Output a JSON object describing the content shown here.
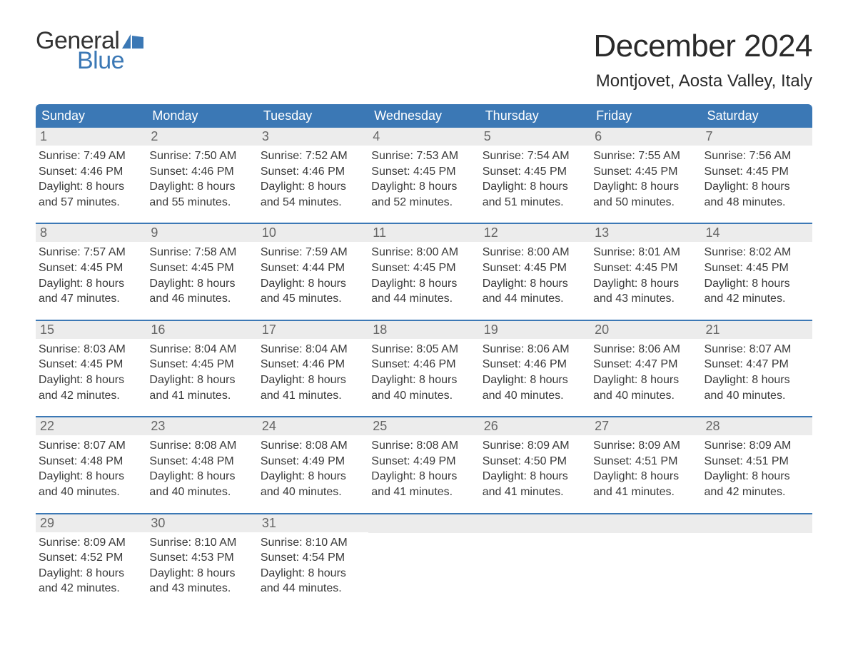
{
  "logo": {
    "text_general": "General",
    "text_blue": "Blue",
    "flag_color": "#3b78b5",
    "text_dark": "#333333"
  },
  "header": {
    "month_title": "December 2024",
    "location": "Montjovet, Aosta Valley, Italy"
  },
  "colors": {
    "header_bg": "#3b78b5",
    "header_text": "#ffffff",
    "daynum_bg": "#ececec",
    "daynum_text": "#666666",
    "body_text": "#3a3a3a",
    "row_border": "#3b78b5",
    "page_bg": "#ffffff"
  },
  "weekdays": [
    "Sunday",
    "Monday",
    "Tuesday",
    "Wednesday",
    "Thursday",
    "Friday",
    "Saturday"
  ],
  "weeks": [
    [
      {
        "day": "1",
        "sunrise": "Sunrise: 7:49 AM",
        "sunset": "Sunset: 4:46 PM",
        "d1": "Daylight: 8 hours",
        "d2": "and 57 minutes."
      },
      {
        "day": "2",
        "sunrise": "Sunrise: 7:50 AM",
        "sunset": "Sunset: 4:46 PM",
        "d1": "Daylight: 8 hours",
        "d2": "and 55 minutes."
      },
      {
        "day": "3",
        "sunrise": "Sunrise: 7:52 AM",
        "sunset": "Sunset: 4:46 PM",
        "d1": "Daylight: 8 hours",
        "d2": "and 54 minutes."
      },
      {
        "day": "4",
        "sunrise": "Sunrise: 7:53 AM",
        "sunset": "Sunset: 4:45 PM",
        "d1": "Daylight: 8 hours",
        "d2": "and 52 minutes."
      },
      {
        "day": "5",
        "sunrise": "Sunrise: 7:54 AM",
        "sunset": "Sunset: 4:45 PM",
        "d1": "Daylight: 8 hours",
        "d2": "and 51 minutes."
      },
      {
        "day": "6",
        "sunrise": "Sunrise: 7:55 AM",
        "sunset": "Sunset: 4:45 PM",
        "d1": "Daylight: 8 hours",
        "d2": "and 50 minutes."
      },
      {
        "day": "7",
        "sunrise": "Sunrise: 7:56 AM",
        "sunset": "Sunset: 4:45 PM",
        "d1": "Daylight: 8 hours",
        "d2": "and 48 minutes."
      }
    ],
    [
      {
        "day": "8",
        "sunrise": "Sunrise: 7:57 AM",
        "sunset": "Sunset: 4:45 PM",
        "d1": "Daylight: 8 hours",
        "d2": "and 47 minutes."
      },
      {
        "day": "9",
        "sunrise": "Sunrise: 7:58 AM",
        "sunset": "Sunset: 4:45 PM",
        "d1": "Daylight: 8 hours",
        "d2": "and 46 minutes."
      },
      {
        "day": "10",
        "sunrise": "Sunrise: 7:59 AM",
        "sunset": "Sunset: 4:44 PM",
        "d1": "Daylight: 8 hours",
        "d2": "and 45 minutes."
      },
      {
        "day": "11",
        "sunrise": "Sunrise: 8:00 AM",
        "sunset": "Sunset: 4:45 PM",
        "d1": "Daylight: 8 hours",
        "d2": "and 44 minutes."
      },
      {
        "day": "12",
        "sunrise": "Sunrise: 8:00 AM",
        "sunset": "Sunset: 4:45 PM",
        "d1": "Daylight: 8 hours",
        "d2": "and 44 minutes."
      },
      {
        "day": "13",
        "sunrise": "Sunrise: 8:01 AM",
        "sunset": "Sunset: 4:45 PM",
        "d1": "Daylight: 8 hours",
        "d2": "and 43 minutes."
      },
      {
        "day": "14",
        "sunrise": "Sunrise: 8:02 AM",
        "sunset": "Sunset: 4:45 PM",
        "d1": "Daylight: 8 hours",
        "d2": "and 42 minutes."
      }
    ],
    [
      {
        "day": "15",
        "sunrise": "Sunrise: 8:03 AM",
        "sunset": "Sunset: 4:45 PM",
        "d1": "Daylight: 8 hours",
        "d2": "and 42 minutes."
      },
      {
        "day": "16",
        "sunrise": "Sunrise: 8:04 AM",
        "sunset": "Sunset: 4:45 PM",
        "d1": "Daylight: 8 hours",
        "d2": "and 41 minutes."
      },
      {
        "day": "17",
        "sunrise": "Sunrise: 8:04 AM",
        "sunset": "Sunset: 4:46 PM",
        "d1": "Daylight: 8 hours",
        "d2": "and 41 minutes."
      },
      {
        "day": "18",
        "sunrise": "Sunrise: 8:05 AM",
        "sunset": "Sunset: 4:46 PM",
        "d1": "Daylight: 8 hours",
        "d2": "and 40 minutes."
      },
      {
        "day": "19",
        "sunrise": "Sunrise: 8:06 AM",
        "sunset": "Sunset: 4:46 PM",
        "d1": "Daylight: 8 hours",
        "d2": "and 40 minutes."
      },
      {
        "day": "20",
        "sunrise": "Sunrise: 8:06 AM",
        "sunset": "Sunset: 4:47 PM",
        "d1": "Daylight: 8 hours",
        "d2": "and 40 minutes."
      },
      {
        "day": "21",
        "sunrise": "Sunrise: 8:07 AM",
        "sunset": "Sunset: 4:47 PM",
        "d1": "Daylight: 8 hours",
        "d2": "and 40 minutes."
      }
    ],
    [
      {
        "day": "22",
        "sunrise": "Sunrise: 8:07 AM",
        "sunset": "Sunset: 4:48 PM",
        "d1": "Daylight: 8 hours",
        "d2": "and 40 minutes."
      },
      {
        "day": "23",
        "sunrise": "Sunrise: 8:08 AM",
        "sunset": "Sunset: 4:48 PM",
        "d1": "Daylight: 8 hours",
        "d2": "and 40 minutes."
      },
      {
        "day": "24",
        "sunrise": "Sunrise: 8:08 AM",
        "sunset": "Sunset: 4:49 PM",
        "d1": "Daylight: 8 hours",
        "d2": "and 40 minutes."
      },
      {
        "day": "25",
        "sunrise": "Sunrise: 8:08 AM",
        "sunset": "Sunset: 4:49 PM",
        "d1": "Daylight: 8 hours",
        "d2": "and 41 minutes."
      },
      {
        "day": "26",
        "sunrise": "Sunrise: 8:09 AM",
        "sunset": "Sunset: 4:50 PM",
        "d1": "Daylight: 8 hours",
        "d2": "and 41 minutes."
      },
      {
        "day": "27",
        "sunrise": "Sunrise: 8:09 AM",
        "sunset": "Sunset: 4:51 PM",
        "d1": "Daylight: 8 hours",
        "d2": "and 41 minutes."
      },
      {
        "day": "28",
        "sunrise": "Sunrise: 8:09 AM",
        "sunset": "Sunset: 4:51 PM",
        "d1": "Daylight: 8 hours",
        "d2": "and 42 minutes."
      }
    ],
    [
      {
        "day": "29",
        "sunrise": "Sunrise: 8:09 AM",
        "sunset": "Sunset: 4:52 PM",
        "d1": "Daylight: 8 hours",
        "d2": "and 42 minutes."
      },
      {
        "day": "30",
        "sunrise": "Sunrise: 8:10 AM",
        "sunset": "Sunset: 4:53 PM",
        "d1": "Daylight: 8 hours",
        "d2": "and 43 minutes."
      },
      {
        "day": "31",
        "sunrise": "Sunrise: 8:10 AM",
        "sunset": "Sunset: 4:54 PM",
        "d1": "Daylight: 8 hours",
        "d2": "and 44 minutes."
      },
      {
        "empty": true
      },
      {
        "empty": true
      },
      {
        "empty": true
      },
      {
        "empty": true
      }
    ]
  ]
}
